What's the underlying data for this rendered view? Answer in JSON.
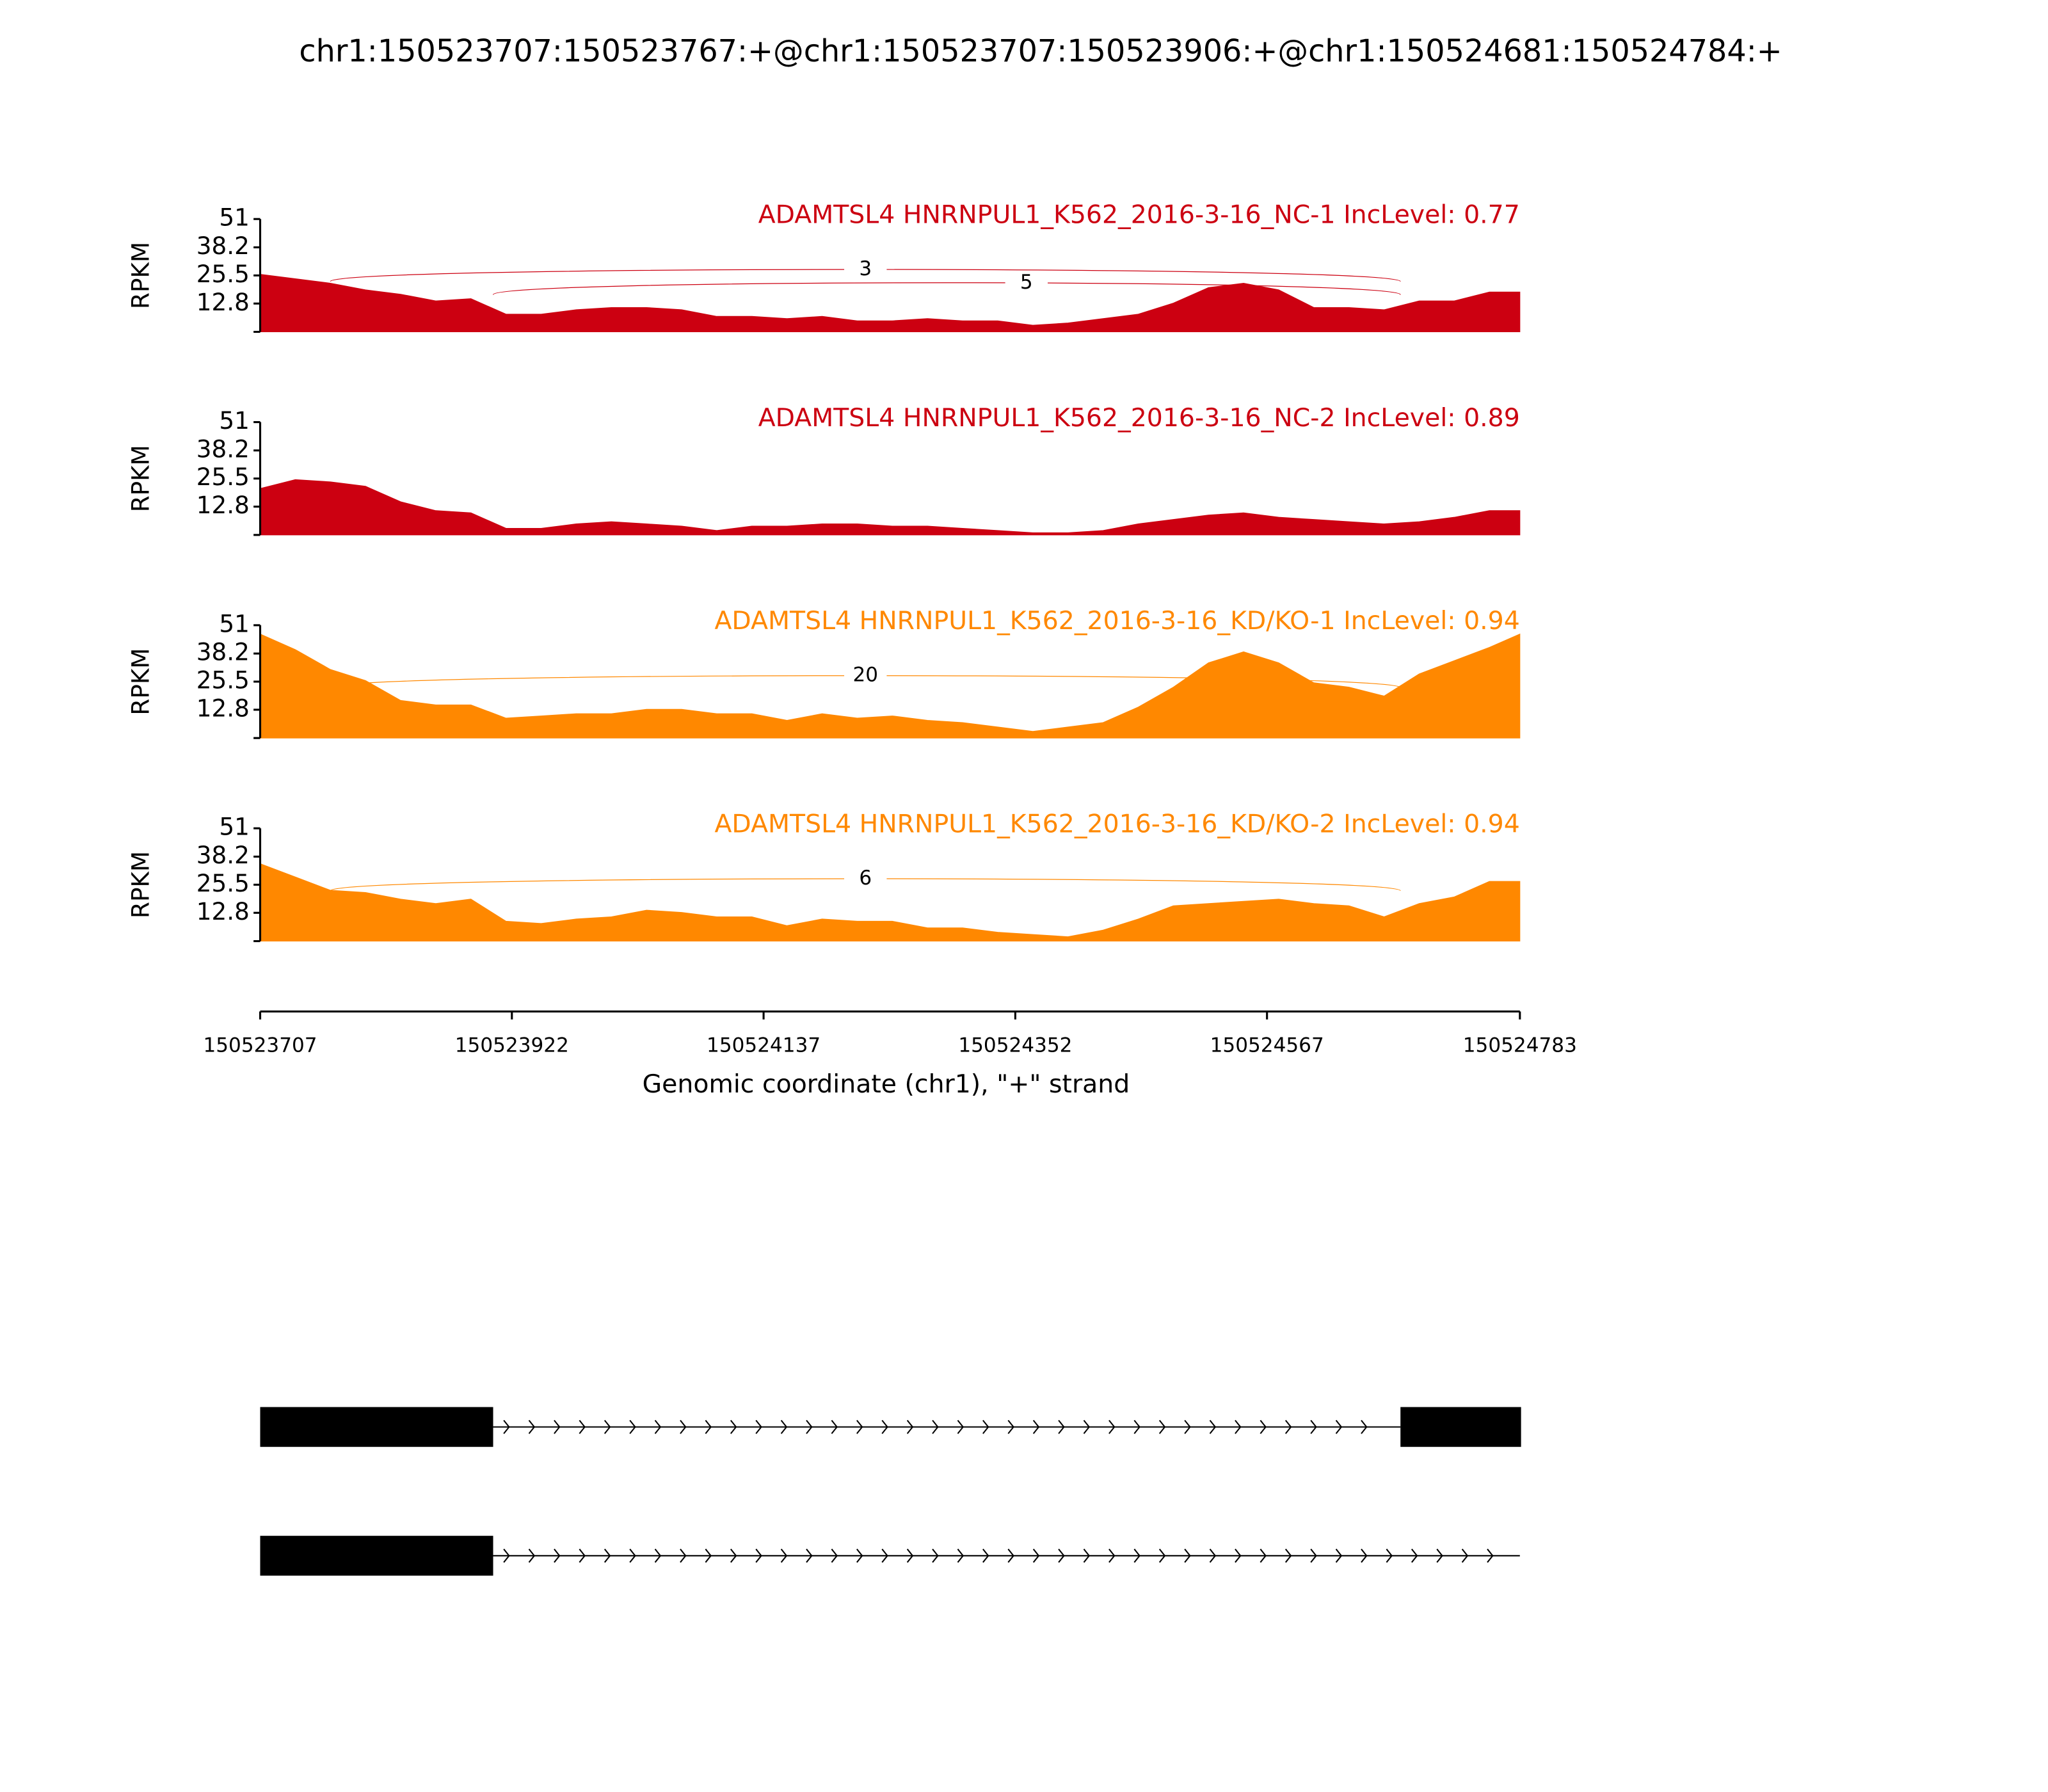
{
  "title": "chr1:150523707:150523767:+@chr1:150523707:150523906:+@chr1:150524681:150524784:+",
  "x_axis": {
    "label": "Genomic coordinate (chr1), \"+\" strand",
    "xlim": [
      150523707,
      150524783
    ],
    "xticks": [
      150523707,
      150523922,
      150524137,
      150524352,
      150524567,
      150524783
    ]
  },
  "chart_data": [
    {
      "type": "area",
      "title": "ADAMTSL4 HNRNPUL1_K562_2016-3-16_NC-1 IncLevel: 0.77",
      "ylabel": "RPKM",
      "color": "#cc0011",
      "ylim": [
        0,
        51
      ],
      "yticks": [
        12.8,
        25.5,
        38.2,
        51
      ],
      "x": [
        150523707,
        150523737,
        150523767,
        150523797,
        150523827,
        150523857,
        150523887,
        150523917,
        150523947,
        150523977,
        150524007,
        150524037,
        150524067,
        150524097,
        150524127,
        150524157,
        150524187,
        150524217,
        150524247,
        150524277,
        150524307,
        150524337,
        150524367,
        150524397,
        150524427,
        150524457,
        150524487,
        150524517,
        150524547,
        150524577,
        150524607,
        150524637,
        150524667,
        150524697,
        150524727,
        150524757,
        150524783
      ],
      "values": [
        26,
        24,
        22,
        19,
        17,
        14,
        15,
        8,
        8,
        10,
        11,
        11,
        10,
        7,
        7,
        6,
        7,
        5,
        5,
        6,
        5,
        5,
        3,
        4,
        6,
        8,
        13,
        20,
        22,
        19,
        11,
        11,
        10,
        14,
        14,
        18,
        18
      ],
      "junctions": [
        {
          "from": 150523767,
          "to": 150524681,
          "count": 3
        },
        {
          "from": 150523906,
          "to": 150524681,
          "count": 5
        }
      ]
    },
    {
      "type": "area",
      "title": "ADAMTSL4 HNRNPUL1_K562_2016-3-16_NC-2 IncLevel: 0.89",
      "ylabel": "RPKM",
      "color": "#cc0011",
      "ylim": [
        0,
        51
      ],
      "yticks": [
        12.8,
        25.5,
        38.2,
        51
      ],
      "x": [
        150523707,
        150523737,
        150523767,
        150523797,
        150523827,
        150523857,
        150523887,
        150523917,
        150523947,
        150523977,
        150524007,
        150524037,
        150524067,
        150524097,
        150524127,
        150524157,
        150524187,
        150524217,
        150524247,
        150524277,
        150524307,
        150524337,
        150524367,
        150524397,
        150524427,
        150524457,
        150524487,
        150524517,
        150524547,
        150524577,
        150524607,
        150524637,
        150524667,
        150524697,
        150524727,
        150524757,
        150524783
      ],
      "values": [
        21,
        25,
        24,
        22,
        15,
        11,
        10,
        3,
        3,
        5,
        6,
        5,
        4,
        2,
        4,
        4,
        5,
        5,
        4,
        4,
        3,
        2,
        1,
        1,
        2,
        5,
        7,
        9,
        10,
        8,
        7,
        6,
        5,
        6,
        8,
        11,
        11
      ],
      "junctions": []
    },
    {
      "type": "area",
      "title": "ADAMTSL4 HNRNPUL1_K562_2016-3-16_KD/KO-1 IncLevel: 0.94",
      "ylabel": "RPKM",
      "color": "#ff8800",
      "ylim": [
        0,
        51
      ],
      "yticks": [
        12.8,
        25.5,
        38.2,
        51
      ],
      "x": [
        150523707,
        150523737,
        150523767,
        150523797,
        150523827,
        150523857,
        150523887,
        150523917,
        150523947,
        150523977,
        150524007,
        150524037,
        150524067,
        150524097,
        150524127,
        150524157,
        150524187,
        150524217,
        150524247,
        150524277,
        150524307,
        150524337,
        150524367,
        150524397,
        150524427,
        150524457,
        150524487,
        150524517,
        150524547,
        150524577,
        150524607,
        150524637,
        150524667,
        150524697,
        150524727,
        150524757,
        150524783
      ],
      "values": [
        47,
        40,
        31,
        26,
        17,
        15,
        15,
        9,
        10,
        11,
        11,
        13,
        13,
        11,
        11,
        8,
        11,
        9,
        10,
        8,
        7,
        5,
        3,
        5,
        7,
        14,
        23,
        34,
        39,
        34,
        25,
        23,
        19,
        29,
        35,
        41,
        47
      ],
      "junctions": [
        {
          "from": 150523767,
          "to": 150524681,
          "count": 20
        }
      ]
    },
    {
      "type": "area",
      "title": "ADAMTSL4 HNRNPUL1_K562_2016-3-16_KD/KO-2 IncLevel: 0.94",
      "ylabel": "RPKM",
      "color": "#ff8800",
      "ylim": [
        0,
        51
      ],
      "yticks": [
        12.8,
        25.5,
        38.2,
        51
      ],
      "x": [
        150523707,
        150523737,
        150523767,
        150523797,
        150523827,
        150523857,
        150523887,
        150523917,
        150523947,
        150523977,
        150524007,
        150524037,
        150524067,
        150524097,
        150524127,
        150524157,
        150524187,
        150524217,
        150524247,
        150524277,
        150524307,
        150524337,
        150524367,
        150524397,
        150524427,
        150524457,
        150524487,
        150524517,
        150524547,
        150524577,
        150524607,
        150524637,
        150524667,
        150524697,
        150524727,
        150524757,
        150524783
      ],
      "values": [
        35,
        29,
        23,
        22,
        19,
        17,
        19,
        9,
        8,
        10,
        11,
        14,
        13,
        11,
        11,
        7,
        10,
        9,
        9,
        6,
        6,
        4,
        3,
        2,
        5,
        10,
        16,
        17,
        18,
        19,
        17,
        16,
        11,
        17,
        20,
        27,
        27
      ],
      "junctions": [
        {
          "from": 150523767,
          "to": 150524681,
          "count": 6
        }
      ]
    }
  ],
  "transcripts": [
    {
      "exons": [
        [
          150523707,
          150523906
        ],
        [
          150524681,
          150524784
        ]
      ]
    },
    {
      "exons": [
        [
          150523707,
          150523906
        ]
      ]
    }
  ]
}
